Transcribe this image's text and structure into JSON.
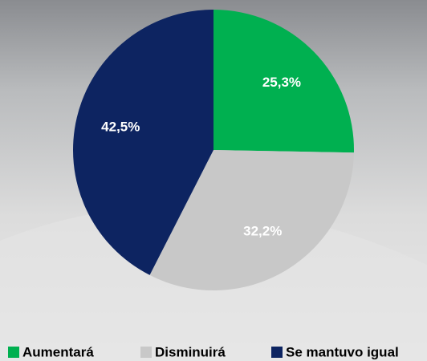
{
  "chart_data": {
    "type": "pie",
    "categories": [
      "Aumentará",
      "Disminuirá",
      "Se mantuvo igual"
    ],
    "values": [
      25.3,
      32.2,
      42.5
    ],
    "value_labels": [
      "25,3%",
      "32,2%",
      "42,5%"
    ],
    "colors": [
      "#00b050",
      "#c8c8c8",
      "#0d2461"
    ]
  }
}
